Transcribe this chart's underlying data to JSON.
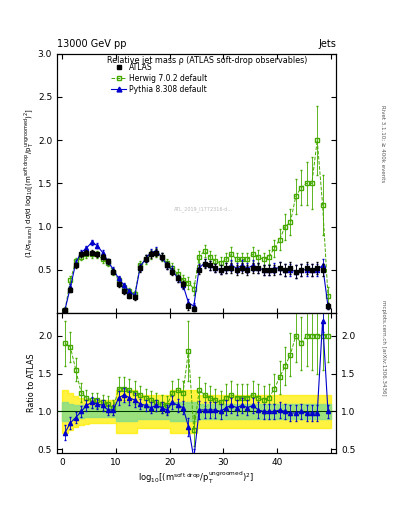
{
  "title_top": "13000 GeV pp",
  "title_right": "Jets",
  "plot_title": "Relative jet mass ρ (ATLAS soft-drop observables)",
  "ylabel_main": "(1/σ_{resum}) dσ/d log_{10}[(m^{soft drop}/p_T^{ungroomed})^2]",
  "ylabel_ratio": "Ratio to ATLAS",
  "xlabel": "log_{10}[(m^{soft drop}/p_T^{ungroomed})^2]",
  "right_label_top": "Rivet 3.1.10; ≥ 400k events",
  "right_label_bot": "mcplots.cern.ch [arXiv:1306.3436]",
  "xlim": [
    -1,
    51
  ],
  "ylim_main": [
    0,
    3.0
  ],
  "ylim_ratio": [
    0.45,
    2.3
  ],
  "x_ticks": [
    0,
    10,
    20,
    30,
    40,
    50
  ],
  "x_ticks_labels": [
    "0",
    "10",
    "20",
    "30",
    "40",
    ""
  ],
  "y_ticks_main": [
    0.5,
    1.0,
    1.5,
    2.0,
    2.5,
    3.0
  ],
  "y_ticks_ratio": [
    0.5,
    1.0,
    1.5,
    2.0
  ],
  "atlas_x": [
    0.5,
    1.5,
    2.5,
    3.5,
    4.5,
    5.5,
    6.5,
    7.5,
    8.5,
    9.5,
    10.5,
    11.5,
    12.5,
    13.5,
    14.5,
    15.5,
    16.5,
    17.5,
    18.5,
    19.5,
    20.5,
    21.5,
    22.5,
    23.5,
    24.5,
    25.5,
    26.5,
    27.5,
    28.5,
    29.5,
    30.5,
    31.5,
    32.5,
    33.5,
    34.5,
    35.5,
    36.5,
    37.5,
    38.5,
    39.5,
    40.5,
    41.5,
    42.5,
    43.5,
    44.5,
    45.5,
    46.5,
    47.5,
    48.5,
    49.5
  ],
  "atlas_y": [
    0.04,
    0.27,
    0.55,
    0.68,
    0.7,
    0.7,
    0.68,
    0.65,
    0.6,
    0.48,
    0.33,
    0.25,
    0.2,
    0.18,
    0.52,
    0.63,
    0.68,
    0.7,
    0.65,
    0.55,
    0.48,
    0.4,
    0.33,
    0.08,
    0.05,
    0.5,
    0.57,
    0.55,
    0.52,
    0.5,
    0.52,
    0.52,
    0.5,
    0.52,
    0.5,
    0.52,
    0.52,
    0.5,
    0.5,
    0.5,
    0.52,
    0.5,
    0.52,
    0.48,
    0.5,
    0.52,
    0.5,
    0.52,
    0.5,
    0.08
  ],
  "atlas_yerr": [
    0.02,
    0.03,
    0.03,
    0.03,
    0.03,
    0.03,
    0.03,
    0.03,
    0.03,
    0.03,
    0.03,
    0.03,
    0.03,
    0.03,
    0.04,
    0.04,
    0.04,
    0.04,
    0.04,
    0.04,
    0.04,
    0.04,
    0.04,
    0.04,
    0.03,
    0.05,
    0.05,
    0.05,
    0.05,
    0.05,
    0.06,
    0.06,
    0.06,
    0.06,
    0.06,
    0.06,
    0.06,
    0.06,
    0.06,
    0.06,
    0.07,
    0.07,
    0.07,
    0.07,
    0.07,
    0.07,
    0.07,
    0.07,
    0.07,
    0.03
  ],
  "herwig_x": [
    0.5,
    1.5,
    2.5,
    3.5,
    4.5,
    5.5,
    6.5,
    7.5,
    8.5,
    9.5,
    10.5,
    11.5,
    12.5,
    13.5,
    14.5,
    15.5,
    16.5,
    17.5,
    18.5,
    19.5,
    20.5,
    21.5,
    22.5,
    23.5,
    24.5,
    25.5,
    26.5,
    27.5,
    28.5,
    29.5,
    30.5,
    31.5,
    32.5,
    33.5,
    34.5,
    35.5,
    36.5,
    37.5,
    38.5,
    39.5,
    40.5,
    41.5,
    42.5,
    43.5,
    44.5,
    45.5,
    46.5,
    47.5,
    48.5,
    49.5
  ],
  "herwig_y": [
    0.04,
    0.38,
    0.6,
    0.65,
    0.68,
    0.68,
    0.68,
    0.62,
    0.58,
    0.48,
    0.38,
    0.3,
    0.25,
    0.22,
    0.55,
    0.62,
    0.68,
    0.7,
    0.65,
    0.58,
    0.52,
    0.45,
    0.38,
    0.35,
    0.28,
    0.65,
    0.72,
    0.65,
    0.6,
    0.58,
    0.62,
    0.68,
    0.62,
    0.62,
    0.62,
    0.68,
    0.65,
    0.62,
    0.65,
    0.75,
    0.85,
    1.0,
    1.05,
    1.35,
    1.45,
    1.5,
    1.5,
    2.0,
    1.25,
    0.2
  ],
  "herwig_yerr": [
    0.03,
    0.05,
    0.04,
    0.04,
    0.04,
    0.04,
    0.04,
    0.04,
    0.04,
    0.04,
    0.04,
    0.04,
    0.04,
    0.04,
    0.05,
    0.05,
    0.05,
    0.05,
    0.05,
    0.05,
    0.06,
    0.06,
    0.06,
    0.07,
    0.07,
    0.07,
    0.07,
    0.07,
    0.07,
    0.07,
    0.08,
    0.08,
    0.08,
    0.08,
    0.08,
    0.08,
    0.08,
    0.08,
    0.08,
    0.1,
    0.12,
    0.15,
    0.15,
    0.2,
    0.2,
    0.25,
    0.3,
    0.4,
    0.35,
    0.1
  ],
  "pythia_x": [
    0.5,
    1.5,
    2.5,
    3.5,
    4.5,
    5.5,
    6.5,
    7.5,
    8.5,
    9.5,
    10.5,
    11.5,
    12.5,
    13.5,
    14.5,
    15.5,
    16.5,
    17.5,
    18.5,
    19.5,
    20.5,
    21.5,
    22.5,
    23.5,
    24.5,
    25.5,
    26.5,
    27.5,
    28.5,
    29.5,
    30.5,
    31.5,
    32.5,
    33.5,
    34.5,
    35.5,
    36.5,
    37.5,
    38.5,
    39.5,
    40.5,
    41.5,
    42.5,
    43.5,
    44.5,
    45.5,
    46.5,
    47.5,
    48.5,
    49.5
  ],
  "pythia_y": [
    0.04,
    0.3,
    0.58,
    0.7,
    0.75,
    0.82,
    0.78,
    0.7,
    0.6,
    0.5,
    0.4,
    0.32,
    0.25,
    0.2,
    0.53,
    0.63,
    0.7,
    0.72,
    0.65,
    0.55,
    0.5,
    0.4,
    0.32,
    0.12,
    0.08,
    0.52,
    0.58,
    0.55,
    0.52,
    0.5,
    0.52,
    0.55,
    0.52,
    0.55,
    0.52,
    0.55,
    0.52,
    0.5,
    0.5,
    0.52,
    0.52,
    0.5,
    0.5,
    0.48,
    0.5,
    0.5,
    0.5,
    0.5,
    0.55,
    0.08
  ],
  "pythia_yerr": [
    0.02,
    0.03,
    0.03,
    0.03,
    0.03,
    0.03,
    0.03,
    0.03,
    0.03,
    0.03,
    0.03,
    0.03,
    0.03,
    0.03,
    0.04,
    0.04,
    0.04,
    0.04,
    0.04,
    0.04,
    0.04,
    0.04,
    0.04,
    0.04,
    0.03,
    0.05,
    0.05,
    0.05,
    0.05,
    0.05,
    0.06,
    0.06,
    0.06,
    0.06,
    0.06,
    0.06,
    0.06,
    0.06,
    0.06,
    0.06,
    0.07,
    0.07,
    0.07,
    0.07,
    0.07,
    0.07,
    0.07,
    0.07,
    0.07,
    0.03
  ],
  "atlas_color": "#000000",
  "herwig_color": "#44aa00",
  "pythia_color": "#0000cc",
  "ratio_herwig_y": [
    1.9,
    1.85,
    1.55,
    1.25,
    1.18,
    1.15,
    1.15,
    1.12,
    1.1,
    1.05,
    1.3,
    1.3,
    1.28,
    1.25,
    1.22,
    1.18,
    1.15,
    1.12,
    1.1,
    1.08,
    1.25,
    1.28,
    1.25,
    1.8,
    0.75,
    1.28,
    1.22,
    1.18,
    1.15,
    1.12,
    1.18,
    1.22,
    1.18,
    1.18,
    1.18,
    1.22,
    1.18,
    1.15,
    1.18,
    1.3,
    1.45,
    1.6,
    1.75,
    2.0,
    1.9,
    2.0,
    2.0,
    2.0,
    2.0,
    2.0
  ],
  "ratio_herwig_yerr": [
    0.3,
    0.2,
    0.15,
    0.12,
    0.1,
    0.1,
    0.1,
    0.1,
    0.1,
    0.1,
    0.15,
    0.15,
    0.15,
    0.15,
    0.12,
    0.12,
    0.12,
    0.12,
    0.12,
    0.12,
    0.15,
    0.15,
    0.15,
    0.4,
    0.2,
    0.18,
    0.15,
    0.15,
    0.15,
    0.15,
    0.18,
    0.18,
    0.18,
    0.18,
    0.18,
    0.18,
    0.18,
    0.18,
    0.18,
    0.2,
    0.22,
    0.25,
    0.28,
    0.35,
    0.35,
    0.4,
    0.45,
    0.5,
    0.45,
    0.35
  ],
  "ratio_pythia_y": [
    0.72,
    0.85,
    0.92,
    1.0,
    1.08,
    1.12,
    1.1,
    1.08,
    1.02,
    1.02,
    1.18,
    1.22,
    1.18,
    1.15,
    1.1,
    1.08,
    1.05,
    1.08,
    1.05,
    1.02,
    1.12,
    1.08,
    1.05,
    0.8,
    0.38,
    1.02,
    1.02,
    1.02,
    1.02,
    1.0,
    1.05,
    1.08,
    1.05,
    1.08,
    1.05,
    1.08,
    1.02,
    1.0,
    1.0,
    1.0,
    1.02,
    1.0,
    0.98,
    0.98,
    1.0,
    0.98,
    0.98,
    0.98,
    2.2,
    1.0
  ],
  "ratio_pythia_yerr": [
    0.1,
    0.08,
    0.07,
    0.07,
    0.07,
    0.07,
    0.07,
    0.07,
    0.07,
    0.07,
    0.09,
    0.09,
    0.09,
    0.09,
    0.07,
    0.07,
    0.07,
    0.07,
    0.07,
    0.07,
    0.09,
    0.09,
    0.09,
    0.12,
    0.12,
    0.12,
    0.1,
    0.1,
    0.1,
    0.1,
    0.1,
    0.1,
    0.1,
    0.1,
    0.1,
    0.1,
    0.1,
    0.1,
    0.1,
    0.1,
    0.1,
    0.1,
    0.1,
    0.1,
    0.1,
    0.1,
    0.1,
    0.1,
    0.15,
    0.08
  ],
  "band_green_x": [
    0,
    1,
    2,
    3,
    4,
    5,
    6,
    7,
    8,
    9,
    10,
    11,
    12,
    13,
    14,
    15,
    16,
    17,
    18,
    19,
    20,
    21,
    22,
    23,
    24,
    25,
    26,
    27,
    28,
    29,
    30,
    31,
    32,
    33,
    34,
    35,
    36,
    37,
    38,
    39,
    40,
    41,
    42,
    43,
    44,
    45,
    46,
    47,
    48,
    49,
    50
  ],
  "band_green_low": [
    0.88,
    0.9,
    0.91,
    0.92,
    0.93,
    0.93,
    0.93,
    0.93,
    0.93,
    0.93,
    0.88,
    0.88,
    0.88,
    0.88,
    0.9,
    0.9,
    0.9,
    0.9,
    0.9,
    0.9,
    0.88,
    0.88,
    0.88,
    0.88,
    0.88,
    0.9,
    0.9,
    0.9,
    0.9,
    0.9,
    0.9,
    0.9,
    0.9,
    0.9,
    0.9,
    0.9,
    0.9,
    0.9,
    0.9,
    0.9,
    0.9,
    0.9,
    0.9,
    0.9,
    0.9,
    0.9,
    0.9,
    0.9,
    0.9,
    0.9,
    0.9
  ],
  "band_green_high": [
    1.12,
    1.1,
    1.09,
    1.08,
    1.07,
    1.07,
    1.07,
    1.07,
    1.07,
    1.07,
    1.12,
    1.12,
    1.12,
    1.12,
    1.1,
    1.1,
    1.1,
    1.1,
    1.1,
    1.1,
    1.12,
    1.12,
    1.12,
    1.12,
    1.12,
    1.1,
    1.1,
    1.1,
    1.1,
    1.1,
    1.1,
    1.1,
    1.1,
    1.1,
    1.1,
    1.1,
    1.1,
    1.1,
    1.1,
    1.1,
    1.1,
    1.1,
    1.1,
    1.1,
    1.1,
    1.1,
    1.1,
    1.1,
    1.1,
    1.1,
    1.1
  ],
  "band_yellow_low": [
    0.72,
    0.76,
    0.8,
    0.82,
    0.84,
    0.85,
    0.85,
    0.85,
    0.85,
    0.85,
    0.72,
    0.72,
    0.72,
    0.72,
    0.78,
    0.78,
    0.78,
    0.78,
    0.78,
    0.78,
    0.72,
    0.72,
    0.72,
    0.72,
    0.72,
    0.78,
    0.78,
    0.78,
    0.78,
    0.78,
    0.78,
    0.78,
    0.78,
    0.78,
    0.78,
    0.78,
    0.78,
    0.78,
    0.78,
    0.78,
    0.78,
    0.78,
    0.78,
    0.78,
    0.78,
    0.78,
    0.78,
    0.78,
    0.78,
    0.78,
    0.78
  ],
  "band_yellow_high": [
    1.28,
    1.24,
    1.2,
    1.18,
    1.16,
    1.15,
    1.15,
    1.15,
    1.15,
    1.15,
    1.28,
    1.28,
    1.28,
    1.28,
    1.22,
    1.22,
    1.22,
    1.22,
    1.22,
    1.22,
    1.28,
    1.28,
    1.28,
    1.28,
    1.28,
    1.22,
    1.22,
    1.22,
    1.22,
    1.22,
    1.22,
    1.22,
    1.22,
    1.22,
    1.22,
    1.22,
    1.22,
    1.22,
    1.22,
    1.22,
    1.22,
    1.22,
    1.22,
    1.22,
    1.22,
    1.22,
    1.22,
    1.22,
    1.22,
    1.22,
    1.22
  ],
  "legend_labels": [
    "ATLAS",
    "Herwig 7.0.2 default",
    "Pythia 8.308 default"
  ],
  "bg_color": "#ffffff"
}
